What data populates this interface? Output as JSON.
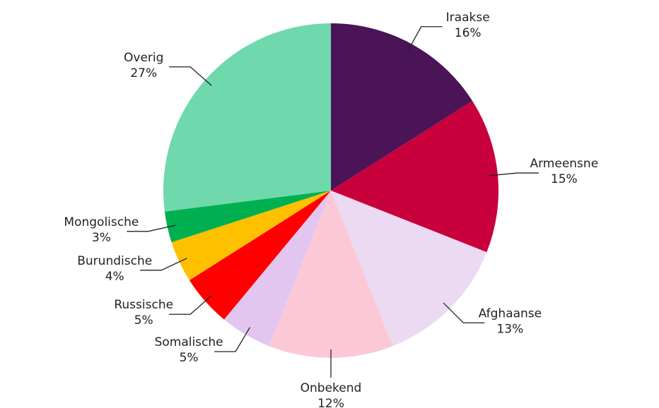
{
  "chart_data": {
    "type": "pie",
    "categories": [
      "Iraakse",
      "Armeensne",
      "Afghaanse",
      "Onbekend",
      "Somalische",
      "Russische",
      "Burundische",
      "Mongolische",
      "Overig"
    ],
    "values": [
      16,
      15,
      13,
      12,
      5,
      5,
      4,
      3,
      27
    ],
    "value_labels": [
      "16%",
      "15%",
      "13%",
      "12%",
      "5%",
      "5%",
      "4%",
      "3%",
      "27%"
    ],
    "colors": [
      "#4a1457",
      "#c8003c",
      "#ecd9f2",
      "#fbc9d6",
      "#e3c6f0",
      "#ff0000",
      "#ffc000",
      "#00b050",
      "#70d8ad"
    ]
  }
}
